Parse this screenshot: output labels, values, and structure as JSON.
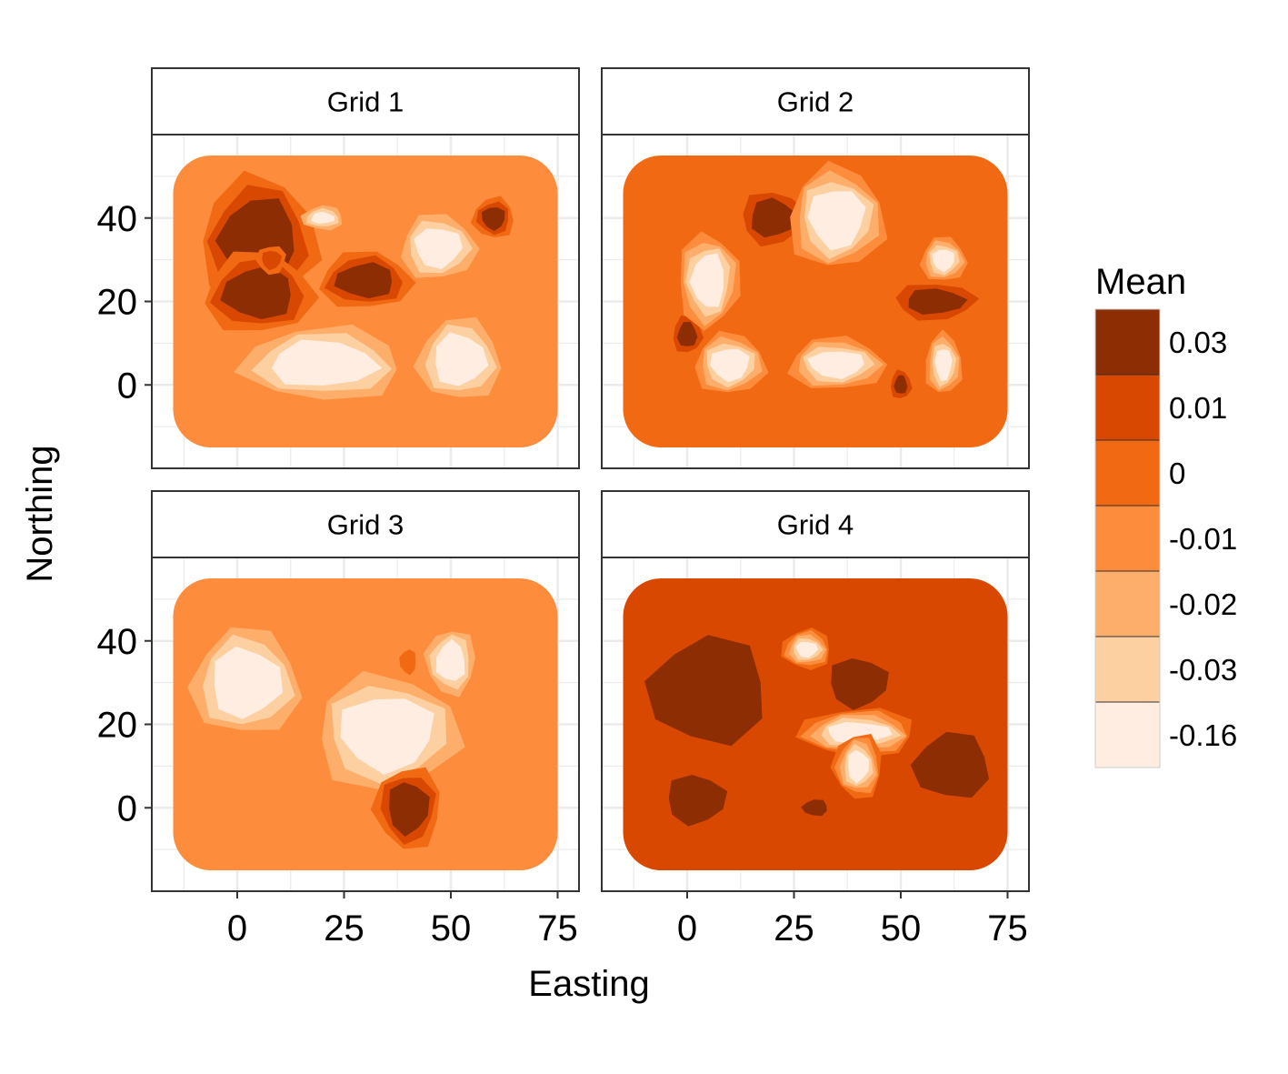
{
  "chart_data": {
    "type": "heatmap",
    "subtype": "filled contour, faceted 2x2",
    "xlabel": "Easting",
    "ylabel": "Northing",
    "x_ticks": [
      0,
      25,
      50,
      75
    ],
    "y_ticks": [
      0,
      20,
      40
    ],
    "xlim": [
      -20,
      80
    ],
    "ylim": [
      -20,
      60
    ],
    "domain": {
      "x": [
        -15,
        75
      ],
      "y": [
        -15,
        55
      ]
    },
    "grid": true,
    "legend": {
      "title": "Mean",
      "position": "right",
      "levels": [
        {
          "label": "0.03",
          "color": "#8c2d04"
        },
        {
          "label": "0.01",
          "color": "#d94801"
        },
        {
          "label": "0",
          "color": "#f16913"
        },
        {
          "label": "-0.01",
          "color": "#fd8d3c"
        },
        {
          "label": "-0.02",
          "color": "#fdae6b"
        },
        {
          "label": "-0.03",
          "color": "#fdd0a2"
        },
        {
          "label": "-0.16",
          "color": "#feede0"
        }
      ]
    },
    "panels": [
      {
        "label": "Grid 1",
        "background_level": 3,
        "blobs": [
          {
            "x": 5,
            "y": 35,
            "rx": 13,
            "ry": 14,
            "level": 0
          },
          {
            "x": 5,
            "y": 22,
            "rx": 12,
            "ry": 9,
            "level": 0
          },
          {
            "x": 30,
            "y": 25,
            "rx": 10,
            "ry": 6,
            "level": 0
          },
          {
            "x": 8,
            "y": 30,
            "rx": 3,
            "ry": 3,
            "level": 1
          },
          {
            "x": 20,
            "y": 40,
            "rx": 4,
            "ry": 2,
            "level": 6
          },
          {
            "x": 20,
            "y": 5,
            "rx": 18,
            "ry": 8,
            "level": 6
          },
          {
            "x": 47,
            "y": 33,
            "rx": 8,
            "ry": 7,
            "level": 6
          },
          {
            "x": 52,
            "y": 6,
            "rx": 9,
            "ry": 9,
            "level": 6
          },
          {
            "x": 60,
            "y": 40,
            "rx": 4,
            "ry": 4,
            "level": 0
          }
        ]
      },
      {
        "label": "Grid 2",
        "background_level": 2,
        "blobs": [
          {
            "x": 20,
            "y": 40,
            "rx": 7,
            "ry": 6,
            "level": 0
          },
          {
            "x": 35,
            "y": 40,
            "rx": 10,
            "ry": 11,
            "level": 6
          },
          {
            "x": 58,
            "y": 20,
            "rx": 9,
            "ry": 4,
            "level": 0
          },
          {
            "x": 0,
            "y": 12,
            "rx": 3,
            "ry": 4,
            "level": 0
          },
          {
            "x": 5,
            "y": 25,
            "rx": 6,
            "ry": 10,
            "level": 6
          },
          {
            "x": 10,
            "y": 5,
            "rx": 7,
            "ry": 6,
            "level": 6
          },
          {
            "x": 35,
            "y": 5,
            "rx": 10,
            "ry": 5,
            "level": 6
          },
          {
            "x": 60,
            "y": 5,
            "rx": 3,
            "ry": 6,
            "level": 6
          },
          {
            "x": 60,
            "y": 30,
            "rx": 4,
            "ry": 4,
            "level": 6
          },
          {
            "x": 50,
            "y": 0,
            "rx": 2,
            "ry": 3,
            "level": 0
          }
        ]
      },
      {
        "label": "Grid 3",
        "background_level": 3,
        "blobs": [
          {
            "x": 2,
            "y": 30,
            "rx": 12,
            "ry": 12,
            "level": 6
          },
          {
            "x": 35,
            "y": 18,
            "rx": 16,
            "ry": 13,
            "level": 6
          },
          {
            "x": 50,
            "y": 35,
            "rx": 5,
            "ry": 7,
            "level": 6
          },
          {
            "x": 40,
            "y": 0,
            "rx": 7,
            "ry": 9,
            "level": 0
          },
          {
            "x": 40,
            "y": 35,
            "rx": 2,
            "ry": 3,
            "level": 2
          }
        ]
      },
      {
        "label": "Grid 4",
        "background_level": 1,
        "blobs": [
          {
            "x": 5,
            "y": 28,
            "rx": 14,
            "ry": 13,
            "level": 0
          },
          {
            "x": 40,
            "y": 30,
            "rx": 7,
            "ry": 6,
            "level": 0
          },
          {
            "x": 62,
            "y": 10,
            "rx": 9,
            "ry": 8,
            "level": 0
          },
          {
            "x": 2,
            "y": 2,
            "rx": 7,
            "ry": 6,
            "level": 0
          },
          {
            "x": 30,
            "y": 0,
            "rx": 3,
            "ry": 2,
            "level": 0
          },
          {
            "x": 40,
            "y": 18,
            "rx": 12,
            "ry": 4,
            "level": 6
          },
          {
            "x": 40,
            "y": 10,
            "rx": 4,
            "ry": 6,
            "level": 6
          },
          {
            "x": 28,
            "y": 38,
            "rx": 4,
            "ry": 3,
            "level": 6
          }
        ]
      }
    ]
  }
}
